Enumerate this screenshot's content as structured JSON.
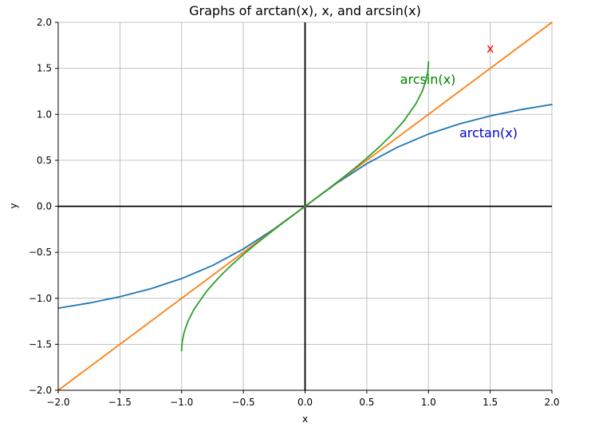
{
  "chart_data": {
    "type": "line",
    "title": "Graphs of arctan(x), x, and arcsin(x)",
    "xlabel": "x",
    "ylabel": "y",
    "xlim": [
      -2.0,
      2.0
    ],
    "ylim": [
      -2.0,
      2.0
    ],
    "grid": true,
    "xticks": [
      "−2.0",
      "−1.5",
      "−1.0",
      "−0.5",
      "0.0",
      "0.5",
      "1.0",
      "1.5",
      "2.0"
    ],
    "yticks": [
      "−2.0",
      "−1.5",
      "−1.0",
      "−0.5",
      "0.0",
      "0.5",
      "1.0",
      "1.5",
      "2.0"
    ],
    "xtick_values": [
      -2.0,
      -1.5,
      -1.0,
      -0.5,
      0.0,
      0.5,
      1.0,
      1.5,
      2.0
    ],
    "ytick_values": [
      -2.0,
      -1.5,
      -1.0,
      -0.5,
      0.0,
      0.5,
      1.0,
      1.5,
      2.0
    ],
    "series": [
      {
        "label": "arctan(x)",
        "color": "#1f77b4",
        "label_color": "#0000cd",
        "label_at": [
          1.25,
          0.75
        ],
        "x": [
          -2.0,
          -1.75,
          -1.5,
          -1.25,
          -1.0,
          -0.75,
          -0.5,
          -0.25,
          0.0,
          0.25,
          0.5,
          0.75,
          1.0,
          1.25,
          1.5,
          1.75,
          2.0
        ],
        "y": [
          -1.107,
          -1.052,
          -0.983,
          -0.896,
          -0.785,
          -0.644,
          -0.464,
          -0.245,
          0.0,
          0.245,
          0.464,
          0.644,
          0.785,
          0.896,
          0.983,
          1.052,
          1.107
        ]
      },
      {
        "label": "x",
        "color": "#ff7f0e",
        "label_color": "#ff0000",
        "label_at": [
          1.47,
          1.67
        ],
        "x": [
          -2.0,
          2.0
        ],
        "y": [
          -2.0,
          2.0
        ]
      },
      {
        "label": "arcsin(x)",
        "color": "#2ca02c",
        "label_color": "#008000",
        "label_at": [
          0.77,
          1.33
        ],
        "x": [
          -1.0,
          -0.999,
          -0.995,
          -0.98,
          -0.95,
          -0.9,
          -0.8,
          -0.7,
          -0.6,
          -0.5,
          -0.4,
          -0.3,
          -0.2,
          -0.1,
          0.0,
          0.1,
          0.2,
          0.3,
          0.4,
          0.5,
          0.6,
          0.7,
          0.8,
          0.9,
          0.95,
          0.98,
          0.995,
          0.999,
          1.0
        ],
        "y": [
          -1.5,
          -1.526,
          -1.471,
          -1.37,
          -1.253,
          -1.12,
          -0.927,
          -0.775,
          -0.644,
          -0.524,
          -0.412,
          -0.305,
          -0.201,
          -0.1,
          0.0,
          0.1,
          0.201,
          0.305,
          0.412,
          0.524,
          0.644,
          0.775,
          0.927,
          1.12,
          1.253,
          1.37,
          1.471,
          1.526,
          1.5
        ]
      }
    ]
  }
}
